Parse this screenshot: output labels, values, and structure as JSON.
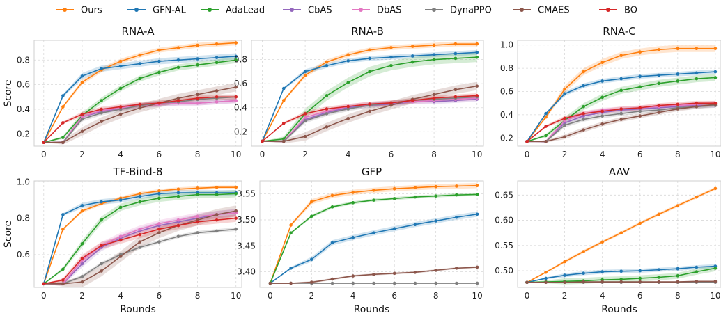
{
  "legend": [
    {
      "name": "Ours",
      "color": "#ff7f0e"
    },
    {
      "name": "GFN-AL",
      "color": "#1f77b4"
    },
    {
      "name": "AdaLead",
      "color": "#2ca02c"
    },
    {
      "name": "CbAS",
      "color": "#9467bd"
    },
    {
      "name": "DbAS",
      "color": "#e377c2"
    },
    {
      "name": "DynaPPO",
      "color": "#7f7f7f"
    },
    {
      "name": "CMAES",
      "color": "#8c564b"
    },
    {
      "name": "BO",
      "color": "#d62728"
    }
  ],
  "chart_data": [
    {
      "type": "line",
      "title": "RNA-A",
      "xlabel": "",
      "ylabel": "Score",
      "x": [
        0,
        1,
        2,
        3,
        4,
        5,
        6,
        7,
        8,
        9,
        10
      ],
      "xlim": [
        -0.5,
        10.3
      ],
      "ylim": [
        0.1,
        0.96
      ],
      "xticks": [
        "0",
        "2",
        "4",
        "6",
        "8",
        "10"
      ],
      "yticks": [
        "0.2",
        "0.4",
        "0.6",
        "0.8"
      ],
      "grid": true,
      "series": [
        {
          "name": "Ours",
          "color": "#ff7f0e",
          "values": [
            0.13,
            0.42,
            0.62,
            0.72,
            0.79,
            0.84,
            0.88,
            0.9,
            0.92,
            0.93,
            0.94
          ],
          "band": 0.02
        },
        {
          "name": "GFN-AL",
          "color": "#1f77b4",
          "values": [
            0.13,
            0.51,
            0.67,
            0.73,
            0.75,
            0.77,
            0.79,
            0.8,
            0.81,
            0.82,
            0.83
          ],
          "band": 0.025
        },
        {
          "name": "AdaLead",
          "color": "#2ca02c",
          "values": [
            0.13,
            0.17,
            0.35,
            0.47,
            0.57,
            0.65,
            0.7,
            0.74,
            0.76,
            0.78,
            0.8
          ],
          "band": 0.025
        },
        {
          "name": "CbAS",
          "color": "#9467bd",
          "values": [
            0.13,
            0.13,
            0.34,
            0.38,
            0.41,
            0.43,
            0.44,
            0.45,
            0.45,
            0.46,
            0.47
          ],
          "band": 0.02
        },
        {
          "name": "DbAS",
          "color": "#e377c2",
          "values": [
            0.13,
            0.13,
            0.34,
            0.39,
            0.41,
            0.43,
            0.44,
            0.45,
            0.45,
            0.46,
            0.47
          ],
          "band": 0.02
        },
        {
          "name": "DynaPPO",
          "color": "#7f7f7f",
          "values": [
            0.13,
            0.13,
            0.32,
            0.37,
            0.4,
            0.43,
            0.45,
            0.46,
            0.48,
            0.49,
            0.5
          ],
          "band": 0.02
        },
        {
          "name": "CMAES",
          "color": "#8c564b",
          "values": [
            0.13,
            0.13,
            0.22,
            0.3,
            0.36,
            0.41,
            0.45,
            0.49,
            0.52,
            0.55,
            0.58
          ],
          "band": 0.035
        },
        {
          "name": "BO",
          "color": "#d62728",
          "values": [
            0.13,
            0.29,
            0.36,
            0.4,
            0.42,
            0.44,
            0.45,
            0.47,
            0.49,
            0.5,
            0.5
          ],
          "band": 0.02
        }
      ]
    },
    {
      "type": "line",
      "title": "RNA-B",
      "xlabel": "",
      "ylabel": "",
      "x": [
        0,
        1,
        2,
        3,
        4,
        5,
        6,
        7,
        8,
        9,
        10
      ],
      "xlim": [
        -0.5,
        10.3
      ],
      "ylim": [
        0.08,
        0.96
      ],
      "xticks": [
        "0",
        "2",
        "4",
        "6",
        "8",
        "10"
      ],
      "yticks": [
        "0.2",
        "0.4",
        "0.6",
        "0.8"
      ],
      "grid": true,
      "series": [
        {
          "name": "Ours",
          "color": "#ff7f0e",
          "values": [
            0.12,
            0.46,
            0.67,
            0.78,
            0.84,
            0.88,
            0.9,
            0.91,
            0.92,
            0.93,
            0.93
          ],
          "band": 0.02
        },
        {
          "name": "GFN-AL",
          "color": "#1f77b4",
          "values": [
            0.12,
            0.56,
            0.7,
            0.75,
            0.79,
            0.81,
            0.82,
            0.83,
            0.84,
            0.85,
            0.86
          ],
          "band": 0.02
        },
        {
          "name": "AdaLead",
          "color": "#2ca02c",
          "values": [
            0.12,
            0.14,
            0.35,
            0.5,
            0.61,
            0.7,
            0.75,
            0.78,
            0.8,
            0.81,
            0.82
          ],
          "band": 0.04
        },
        {
          "name": "CbAS",
          "color": "#9467bd",
          "values": [
            0.12,
            0.12,
            0.3,
            0.36,
            0.4,
            0.42,
            0.43,
            0.45,
            0.45,
            0.46,
            0.47
          ],
          "band": 0.02
        },
        {
          "name": "DbAS",
          "color": "#e377c2",
          "values": [
            0.12,
            0.12,
            0.32,
            0.37,
            0.41,
            0.43,
            0.44,
            0.45,
            0.46,
            0.47,
            0.48
          ],
          "band": 0.02
        },
        {
          "name": "DynaPPO",
          "color": "#7f7f7f",
          "values": [
            0.12,
            0.12,
            0.29,
            0.35,
            0.39,
            0.42,
            0.44,
            0.46,
            0.47,
            0.48,
            0.49
          ],
          "band": 0.02
        },
        {
          "name": "CMAES",
          "color": "#8c564b",
          "values": [
            0.12,
            0.12,
            0.16,
            0.24,
            0.31,
            0.37,
            0.42,
            0.47,
            0.51,
            0.55,
            0.58
          ],
          "band": 0.035
        },
        {
          "name": "BO",
          "color": "#d62728",
          "values": [
            0.12,
            0.27,
            0.35,
            0.39,
            0.41,
            0.43,
            0.44,
            0.46,
            0.48,
            0.49,
            0.5
          ],
          "band": 0.02
        }
      ]
    },
    {
      "type": "line",
      "title": "RNA-C",
      "xlabel": "",
      "ylabel": "",
      "x": [
        0,
        1,
        2,
        3,
        4,
        5,
        6,
        7,
        8,
        9,
        10
      ],
      "xlim": [
        -0.5,
        10.3
      ],
      "ylim": [
        0.13,
        1.04
      ],
      "xticks": [
        "0",
        "2",
        "4",
        "6",
        "8",
        "10"
      ],
      "yticks": [
        "0.2",
        "0.4",
        "0.6",
        "0.8",
        "1.0"
      ],
      "grid": true,
      "series": [
        {
          "name": "Ours",
          "color": "#ff7f0e",
          "values": [
            0.17,
            0.38,
            0.62,
            0.77,
            0.85,
            0.91,
            0.94,
            0.96,
            0.97,
            0.97,
            0.97
          ],
          "band": 0.03
        },
        {
          "name": "GFN-AL",
          "color": "#1f77b4",
          "values": [
            0.17,
            0.41,
            0.58,
            0.65,
            0.69,
            0.71,
            0.73,
            0.74,
            0.75,
            0.76,
            0.77
          ],
          "band": 0.02
        },
        {
          "name": "AdaLead",
          "color": "#2ca02c",
          "values": [
            0.17,
            0.22,
            0.35,
            0.47,
            0.55,
            0.61,
            0.64,
            0.67,
            0.69,
            0.71,
            0.72
          ],
          "band": 0.03
        },
        {
          "name": "CbAS",
          "color": "#9467bd",
          "values": [
            0.17,
            0.17,
            0.33,
            0.39,
            0.42,
            0.44,
            0.45,
            0.46,
            0.47,
            0.48,
            0.48
          ],
          "band": 0.02
        },
        {
          "name": "DbAS",
          "color": "#e377c2",
          "values": [
            0.17,
            0.17,
            0.35,
            0.41,
            0.44,
            0.45,
            0.46,
            0.47,
            0.48,
            0.49,
            0.5
          ],
          "band": 0.02
        },
        {
          "name": "DynaPPO",
          "color": "#7f7f7f",
          "values": [
            0.17,
            0.17,
            0.31,
            0.36,
            0.39,
            0.41,
            0.43,
            0.44,
            0.46,
            0.47,
            0.48
          ],
          "band": 0.02
        },
        {
          "name": "CMAES",
          "color": "#8c564b",
          "values": [
            0.17,
            0.17,
            0.21,
            0.27,
            0.32,
            0.36,
            0.39,
            0.42,
            0.45,
            0.47,
            0.49
          ],
          "band": 0.02
        },
        {
          "name": "BO",
          "color": "#d62728",
          "values": [
            0.17,
            0.3,
            0.37,
            0.41,
            0.43,
            0.45,
            0.46,
            0.48,
            0.49,
            0.5,
            0.5
          ],
          "band": 0.02
        }
      ]
    },
    {
      "type": "line",
      "title": "TF-Bind-8",
      "xlabel": "Rounds",
      "ylabel": "Score",
      "x": [
        0,
        1,
        2,
        3,
        4,
        5,
        6,
        7,
        8,
        9,
        10
      ],
      "xlim": [
        -0.5,
        10.3
      ],
      "ylim": [
        0.42,
        1.005
      ],
      "xticks": [
        "0",
        "2",
        "4",
        "6",
        "8",
        "10"
      ],
      "yticks": [
        "0.6",
        "0.8",
        "1.0"
      ],
      "grid": true,
      "series": [
        {
          "name": "Ours",
          "color": "#ff7f0e",
          "values": [
            0.44,
            0.74,
            0.84,
            0.88,
            0.91,
            0.935,
            0.95,
            0.96,
            0.965,
            0.97,
            0.97
          ],
          "band": 0.01
        },
        {
          "name": "GFN-AL",
          "color": "#1f77b4",
          "values": [
            0.44,
            0.82,
            0.87,
            0.89,
            0.9,
            0.92,
            0.935,
            0.94,
            0.94,
            0.94,
            0.94
          ],
          "band": 0.015
        },
        {
          "name": "AdaLead",
          "color": "#2ca02c",
          "values": [
            0.44,
            0.52,
            0.66,
            0.79,
            0.86,
            0.89,
            0.91,
            0.92,
            0.93,
            0.93,
            0.935
          ],
          "band": 0.02
        },
        {
          "name": "CbAS",
          "color": "#9467bd",
          "values": [
            0.44,
            0.44,
            0.55,
            0.64,
            0.69,
            0.73,
            0.76,
            0.78,
            0.8,
            0.82,
            0.83
          ],
          "band": 0.02
        },
        {
          "name": "DbAS",
          "color": "#e377c2",
          "values": [
            0.44,
            0.44,
            0.57,
            0.65,
            0.7,
            0.74,
            0.77,
            0.79,
            0.81,
            0.82,
            0.83
          ],
          "band": 0.02
        },
        {
          "name": "DynaPPO",
          "color": "#7f7f7f",
          "values": [
            0.44,
            0.44,
            0.48,
            0.55,
            0.6,
            0.64,
            0.67,
            0.7,
            0.72,
            0.73,
            0.74
          ],
          "band": 0.01
        },
        {
          "name": "CMAES",
          "color": "#8c564b",
          "values": [
            0.44,
            0.44,
            0.45,
            0.51,
            0.59,
            0.67,
            0.72,
            0.76,
            0.79,
            0.82,
            0.84
          ],
          "band": 0.03
        },
        {
          "name": "BO",
          "color": "#d62728",
          "values": [
            0.44,
            0.46,
            0.58,
            0.65,
            0.68,
            0.71,
            0.74,
            0.76,
            0.78,
            0.79,
            0.8
          ],
          "band": 0.02
        }
      ]
    },
    {
      "type": "line",
      "title": "GFP",
      "xlabel": "Rounds",
      "ylabel": "",
      "x": [
        0,
        1,
        2,
        3,
        4,
        5,
        6,
        7,
        8,
        9,
        10
      ],
      "xlim": [
        -0.5,
        10.3
      ],
      "ylim": [
        3.37,
        3.575
      ],
      "xticks": [
        "0",
        "2",
        "4",
        "6",
        "8",
        "10"
      ],
      "yticks": [
        "3.40",
        "3.45",
        "3.50",
        "3.55"
      ],
      "grid": true,
      "series": [
        {
          "name": "Ours",
          "color": "#ff7f0e",
          "values": [
            3.378,
            3.49,
            3.535,
            3.547,
            3.553,
            3.557,
            3.56,
            3.562,
            3.564,
            3.565,
            3.566
          ],
          "band": 0.005
        },
        {
          "name": "GFN-AL",
          "color": "#1f77b4",
          "values": [
            3.378,
            3.407,
            3.424,
            3.456,
            3.466,
            3.475,
            3.483,
            3.491,
            3.498,
            3.505,
            3.511
          ],
          "band": 0.005
        },
        {
          "name": "AdaLead",
          "color": "#2ca02c",
          "values": [
            3.378,
            3.475,
            3.507,
            3.525,
            3.533,
            3.538,
            3.541,
            3.544,
            3.546,
            3.548,
            3.549
          ],
          "band": 0.003
        },
        {
          "name": "DynaPPO",
          "color": "#7f7f7f",
          "values": [
            3.378,
            3.378,
            3.378,
            3.378,
            3.378,
            3.378,
            3.378,
            3.378,
            3.378,
            3.378,
            3.378
          ],
          "band": 0.0
        },
        {
          "name": "CMAES",
          "color": "#8c564b",
          "values": [
            3.378,
            3.378,
            3.38,
            3.386,
            3.392,
            3.395,
            3.397,
            3.399,
            3.403,
            3.407,
            3.409
          ],
          "band": 0.002
        }
      ]
    },
    {
      "type": "line",
      "title": "AAV",
      "xlabel": "Rounds",
      "ylabel": "",
      "x": [
        0,
        1,
        2,
        3,
        4,
        5,
        6,
        7,
        8,
        9,
        10
      ],
      "xlim": [
        -0.5,
        10.3
      ],
      "ylim": [
        0.467,
        0.678
      ],
      "xticks": [
        "0",
        "2",
        "4",
        "6",
        "8",
        "10"
      ],
      "yticks": [
        "0.50",
        "0.55",
        "0.60",
        "0.65"
      ],
      "grid": true,
      "series": [
        {
          "name": "Ours",
          "color": "#ff7f0e",
          "values": [
            0.477,
            0.497,
            0.518,
            0.538,
            0.557,
            0.575,
            0.594,
            0.612,
            0.629,
            0.646,
            0.663
          ],
          "band": 0.003
        },
        {
          "name": "GFN-AL",
          "color": "#1f77b4",
          "values": [
            0.477,
            0.485,
            0.491,
            0.495,
            0.498,
            0.499,
            0.5,
            0.502,
            0.504,
            0.507,
            0.509
          ],
          "band": 0.004
        },
        {
          "name": "AdaLead",
          "color": "#2ca02c",
          "values": [
            0.477,
            0.478,
            0.479,
            0.48,
            0.482,
            0.483,
            0.485,
            0.487,
            0.49,
            0.498,
            0.505
          ],
          "band": 0.006
        },
        {
          "name": "DynaPPO",
          "color": "#7f7f7f",
          "values": [
            0.477,
            0.477,
            0.477,
            0.477,
            0.477,
            0.477,
            0.477,
            0.477,
            0.477,
            0.477,
            0.477
          ],
          "band": 0.0
        },
        {
          "name": "CMAES",
          "color": "#8c564b",
          "values": [
            0.477,
            0.477,
            0.477,
            0.478,
            0.478,
            0.478,
            0.478,
            0.478,
            0.478,
            0.479,
            0.479
          ],
          "band": 0.001
        }
      ]
    }
  ]
}
